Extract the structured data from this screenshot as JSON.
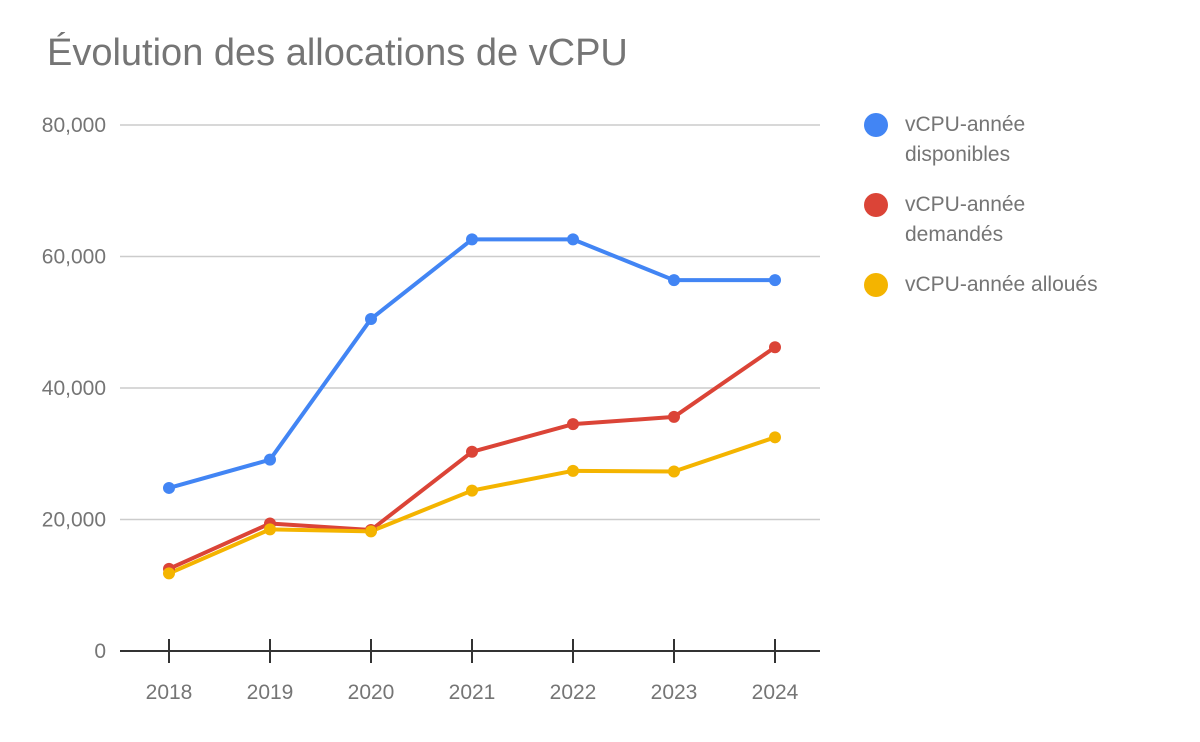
{
  "chart_data": {
    "type": "line",
    "title": "Évolution des allocations de vCPU",
    "categories": [
      "2018",
      "2019",
      "2020",
      "2021",
      "2022",
      "2023",
      "2024"
    ],
    "ylim": [
      0,
      80000
    ],
    "yticks": [
      0,
      20000,
      40000,
      60000,
      80000
    ],
    "ytick_labels": [
      "0",
      "20,000",
      "40,000",
      "60,000",
      "80,000"
    ],
    "grid": true,
    "legend_position": "right",
    "series": [
      {
        "name": "vCPU-année disponibles",
        "color": "#4285F4",
        "values": [
          24800,
          29100,
          50500,
          62600,
          62600,
          56400,
          56400
        ]
      },
      {
        "name": "vCPU-année demandés",
        "color": "#DB4437",
        "values": [
          12500,
          19400,
          18400,
          30300,
          34500,
          35600,
          46200
        ]
      },
      {
        "name": "vCPU-année alloués",
        "color": "#F4B400",
        "values": [
          11800,
          18500,
          18200,
          24400,
          27400,
          27300,
          32500
        ]
      }
    ]
  }
}
